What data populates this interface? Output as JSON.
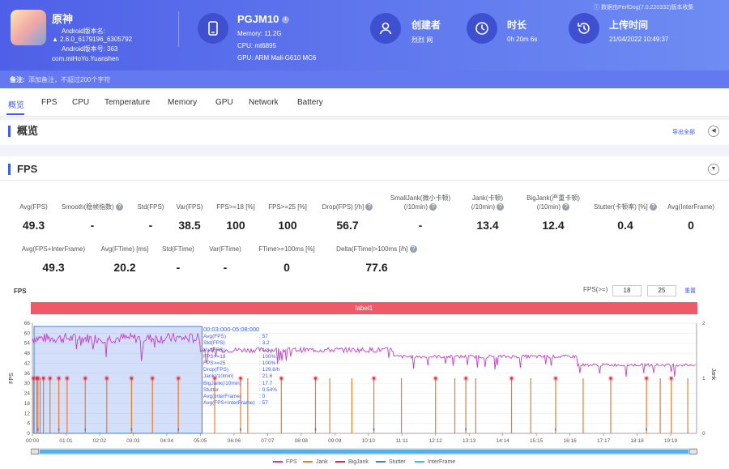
{
  "app": {
    "name": "原神",
    "android_version_label": "Android版本名:",
    "version_name": "2.6.0_6179196_6305792",
    "version_code_label": "Android版本号: 363",
    "package": "com.miHoYo.Yuanshen"
  },
  "device": {
    "model": "PGJM10",
    "memory": "Memory: 11.2G",
    "cpu": "CPU: mt6895",
    "gpu": "GPU: ARM Mali-G610 MC6"
  },
  "creator": {
    "label": "创建者",
    "value": "烈烈 网"
  },
  "duration": {
    "label": "时长",
    "value": "0h 20m 6s"
  },
  "upload": {
    "label": "上传时间",
    "value": "21/04/2022 10:49:37"
  },
  "data_source": "数据由PerfDog(7.0.220332)版本收集",
  "remark": {
    "label": "备注:",
    "placeholder": "添加备注，不超过200个字符"
  },
  "tabs": [
    "概览",
    "FPS",
    "CPU",
    "Temperature",
    "Memory",
    "GPU",
    "Network",
    "Battery"
  ],
  "overview": {
    "title": "概览",
    "export": "导出全部"
  },
  "fps_section": {
    "title": "FPS"
  },
  "metrics_row1": [
    {
      "label": "Avg(FPS)",
      "value": "49.3",
      "help": false
    },
    {
      "label": "Smooth(稳帧指数)",
      "value": "-",
      "help": true
    },
    {
      "label": "Std(FPS)",
      "value": "-",
      "help": false
    },
    {
      "label": "Var(FPS)",
      "value": "38.5",
      "help": false
    },
    {
      "label": "FPS>=18 [%]",
      "value": "100",
      "help": false
    },
    {
      "label": "FPS>=25 [%]",
      "value": "100",
      "help": false
    },
    {
      "label": "Drop(FPS) [/h]",
      "value": "56.7",
      "help": true
    },
    {
      "label": "SmallJank(微小卡顿)\n(/10min)",
      "value": "-",
      "help": true
    },
    {
      "label": "Jank(卡顿)\n(/10min)",
      "value": "13.4",
      "help": true
    },
    {
      "label": "BigJank(严重卡顿)\n(/10min)",
      "value": "12.4",
      "help": true
    },
    {
      "label": "Stutter(卡顿率) [%]",
      "value": "0.4",
      "help": true
    },
    {
      "label": "Avg(InterFrame)",
      "value": "0",
      "help": false
    }
  ],
  "metrics_row2": [
    {
      "label": "Avg(FPS+InterFrame)",
      "value": "49.3",
      "help": false
    },
    {
      "label": "Avg(FTime) [ms]",
      "value": "20.2",
      "help": false
    },
    {
      "label": "Std(FTime)",
      "value": "-",
      "help": false
    },
    {
      "label": "Var(FTime)",
      "value": "-",
      "help": false
    },
    {
      "label": "FTime>=100ms [%]",
      "value": "0",
      "help": false
    },
    {
      "label": "Delta(FTime)>100ms [/h]",
      "value": "77.6",
      "help": true
    }
  ],
  "chart_controls": {
    "title": "FPS",
    "threshold_label": "FPS(>=)",
    "threshold_1": "18",
    "threshold_2": "25",
    "apply": "重置",
    "label_bar": "label1"
  },
  "tooltip": {
    "range": "00:03:000-05:08:000",
    "rows": [
      [
        "Avg(FPS)",
        ": 57"
      ],
      [
        "Std(FPS)",
        ": 3.2"
      ],
      [
        "Var(FPS)",
        ": 1.8"
      ],
      [
        "FPS>=18",
        ": 100%"
      ],
      [
        "FPS>=25",
        ": 100%"
      ],
      [
        "Drop(FPS)",
        ": 129.8/h"
      ],
      [
        "Jank(/10min)",
        ": 21.6"
      ],
      [
        "BigJank(/10min)",
        ": 17.7"
      ],
      [
        "Stutter",
        ": 0.54%"
      ],
      [
        "Avg(InterFrame)",
        ": 0"
      ],
      [
        "Avg(FPS+InterFrame)",
        ": 57"
      ]
    ]
  },
  "colors": {
    "fps": "#c23ec7",
    "jank": "#f07a28",
    "bigjank": "#e6283c",
    "stutter": "#3b7be8",
    "interframe": "#2ec4e6",
    "accent": "#3b5cf0"
  },
  "chart_data": {
    "type": "line",
    "ylabel": "FPS",
    "y2label": "Jank",
    "ylim": [
      0,
      66
    ],
    "y2lim": [
      0,
      2
    ],
    "yticks": [
      0,
      6,
      12,
      18,
      24,
      30,
      36,
      42,
      48,
      54,
      60,
      66
    ],
    "y2ticks": [
      0,
      1,
      2
    ],
    "xticks": [
      "00:00",
      "01:01",
      "02:02",
      "03:03",
      "04:04",
      "05:05",
      "06:06",
      "07:07",
      "08:08",
      "09:09",
      "10:10",
      "11:11",
      "12:12",
      "13:13",
      "14:14",
      "15:15",
      "16:16",
      "17:17",
      "18:18",
      "19:19"
    ],
    "legend": [
      "FPS",
      "Jank",
      "BigJank",
      "Stutter",
      "InterFrame"
    ],
    "series": [
      {
        "name": "FPS",
        "segments": [
          {
            "start": 0,
            "end": 305,
            "level": 57,
            "noise": 3
          },
          {
            "start": 305,
            "end": 656,
            "level": 50,
            "noise": 1.5
          },
          {
            "start": 656,
            "end": 990,
            "level": 46,
            "noise": 1
          },
          {
            "start": 990,
            "end": 1206,
            "level": 41,
            "noise": 0.8
          }
        ]
      },
      {
        "name": "Jank",
        "times": [
          2,
          8,
          10,
          14,
          20,
          32,
          48,
          63,
          96,
          135,
          180,
          218,
          265,
          331,
          378,
          391,
          452,
          514,
          540,
          580,
          620,
          670,
          732,
          767,
          787,
          805,
          870,
          905,
          950,
          1000,
          1050,
          1115,
          1140,
          1160,
          1190
        ],
        "value": 1
      },
      {
        "name": "BigJank",
        "times": [
          2,
          8,
          10,
          20,
          32,
          48,
          63,
          96,
          135,
          180,
          218,
          265,
          331,
          378,
          452,
          514,
          620,
          732,
          787,
          870,
          950,
          1050,
          1115,
          1160
        ],
        "value": 1
      },
      {
        "name": "Stutter",
        "times": [
          10,
          48,
          96,
          180,
          265,
          378,
          514,
          620,
          787,
          950,
          1115
        ],
        "value": 0.05
      }
    ],
    "selection": {
      "start": 3,
      "end": 308
    }
  }
}
